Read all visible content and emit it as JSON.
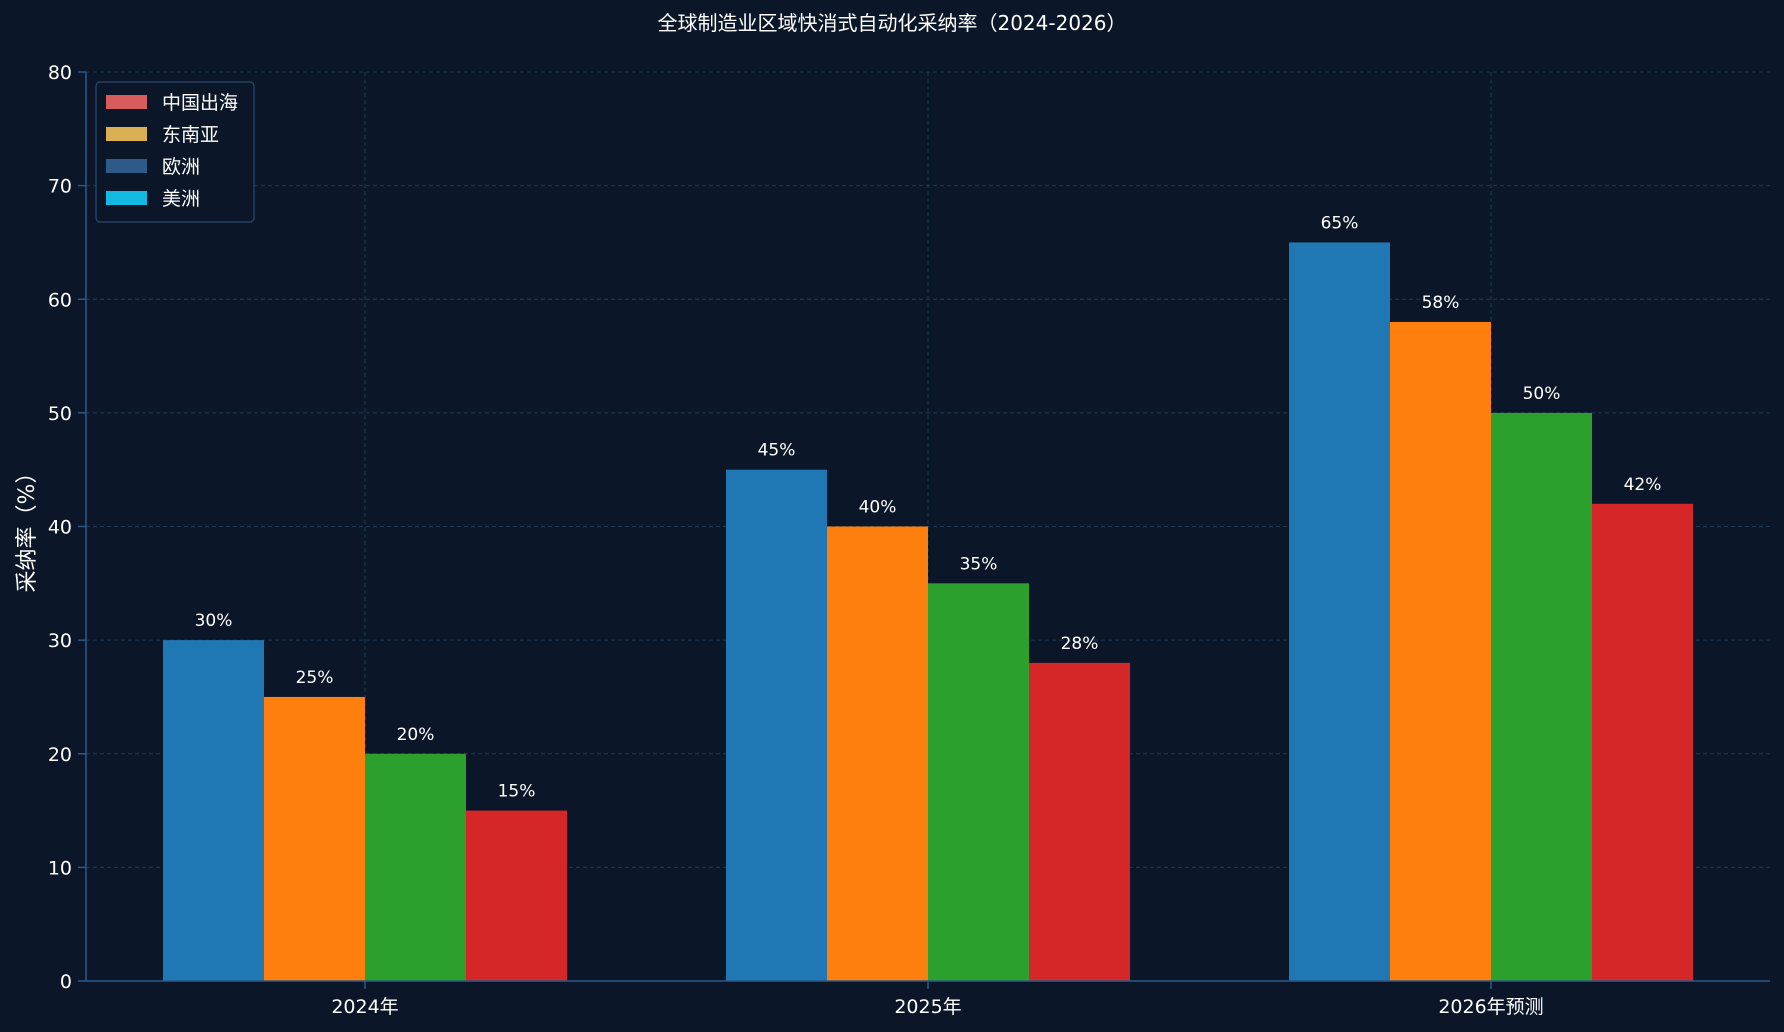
{
  "chart_data": {
    "type": "bar",
    "title": "全球制造业区域快消式自动化采纳率（2024-2026）",
    "xlabel": "",
    "ylabel": "采纳率（%）",
    "ylim": [
      0,
      80
    ],
    "yticks": [
      0,
      10,
      20,
      30,
      40,
      50,
      60,
      70,
      80
    ],
    "categories": [
      "2024年",
      "2025年",
      "2026年预测"
    ],
    "grid": true,
    "legend_position": "top-left",
    "value_suffix": "%",
    "bar_series": [
      {
        "color": "#1f77b4",
        "values": [
          30,
          45,
          65
        ]
      },
      {
        "color": "#ff7f0e",
        "values": [
          25,
          40,
          58
        ]
      },
      {
        "color": "#2ca02c",
        "values": [
          20,
          35,
          50
        ]
      },
      {
        "color": "#d62728",
        "values": [
          15,
          28,
          42
        ]
      }
    ],
    "legend": [
      {
        "name": "中国出海",
        "color": "#d95c5c"
      },
      {
        "name": "东南亚",
        "color": "#d9b054"
      },
      {
        "name": "欧洲",
        "color": "#2e5a8a"
      },
      {
        "name": "美洲",
        "color": "#12b9e0"
      }
    ],
    "colors": {
      "background": "#0b1628",
      "grid": "#1e3a55",
      "axis": "#2a5a8a",
      "text": "#ffffff"
    }
  }
}
